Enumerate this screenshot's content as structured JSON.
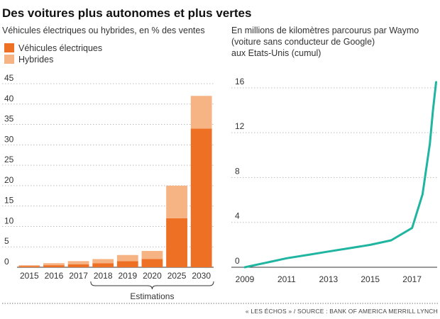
{
  "title": "Des voitures plus autonomes et plus vertes",
  "source": "« LES ÉCHOS » / SOURCE : BANK OF AMERICA MERRILL LYNCH",
  "chart_data": [
    {
      "type": "bar",
      "stacked": true,
      "subtitle": "Véhicules électriques ou hybrides, en % des ventes",
      "categories": [
        "2015",
        "2016",
        "2017",
        "2018",
        "2019",
        "2020",
        "2025",
        "2030"
      ],
      "series": [
        {
          "name": "Véhicules électriques",
          "color": "#ee7024",
          "values": [
            0.3,
            0.5,
            0.7,
            1.0,
            1.5,
            2.0,
            12,
            34
          ]
        },
        {
          "name": "Hybrides",
          "color": "#f6b384",
          "values": [
            0.2,
            0.5,
            0.8,
            1.0,
            1.5,
            2.0,
            8,
            8
          ]
        }
      ],
      "ylim": [
        0,
        45
      ],
      "yticks": [
        "0",
        "5",
        "10",
        "15",
        "20",
        "25",
        "30",
        "35",
        "40",
        "45"
      ],
      "grid": true,
      "legend": "top-left",
      "annotation": "Estimations",
      "annotation_range": [
        "2018",
        "2030"
      ]
    },
    {
      "type": "line",
      "subtitle": [
        "En millions de kilomètres parcourus par Waymo",
        "(voiture sans conducteur de Google)",
        "aux Etats-Unis (cumul)"
      ],
      "x": [
        2009,
        2010,
        2011,
        2012,
        2013,
        2014,
        2015,
        2016,
        2017,
        2017.5,
        2017.85,
        2018.0,
        2018.15
      ],
      "y": [
        0,
        0.4,
        0.8,
        1.1,
        1.4,
        1.7,
        2.0,
        2.4,
        3.5,
        6.5,
        11.0,
        14.0,
        16.5
      ],
      "color": "#1fb5a1",
      "xlim": [
        2009,
        2018.2
      ],
      "ylim": [
        0,
        17
      ],
      "xticks": [
        "2009",
        "2011",
        "2013",
        "2015",
        "2017"
      ],
      "yticks": [
        "0",
        "4",
        "8",
        "12",
        "16"
      ],
      "grid": true
    }
  ]
}
